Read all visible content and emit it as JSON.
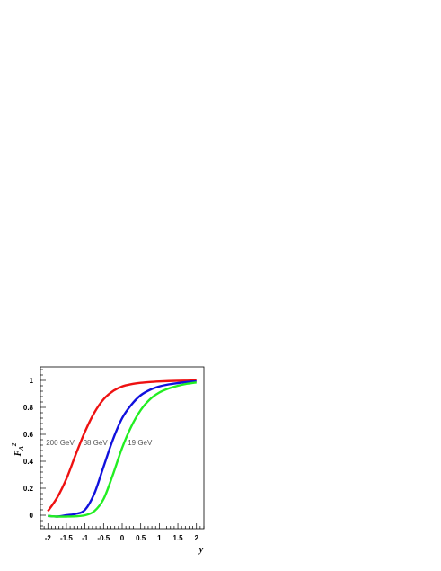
{
  "chart_data": {
    "type": "line",
    "title": "",
    "xlabel": "y",
    "ylabel_main": "F",
    "ylabel_sub": "A",
    "ylabel_sup": "2",
    "xlim": [
      -2.2,
      2.2
    ],
    "ylim": [
      -0.1,
      1.1
    ],
    "grid": false,
    "x_ticks": [
      -2,
      -1.5,
      -1,
      -0.5,
      0,
      0.5,
      1,
      1.5,
      2
    ],
    "x_tick_labels": [
      "-2",
      "-1.5",
      "-1",
      "-0.5",
      "0",
      "0.5",
      "1",
      "1.5",
      "2"
    ],
    "y_ticks": [
      0,
      0.2,
      0.4,
      0.6,
      0.8,
      1
    ],
    "y_tick_labels": [
      "0",
      "0.2",
      "0.4",
      "0.6",
      "0.8",
      "1"
    ],
    "x": [
      -2,
      -1.75,
      -1.5,
      -1.25,
      -1,
      -0.75,
      -0.5,
      -0.25,
      0,
      0.25,
      0.5,
      0.75,
      1,
      1.25,
      1.5,
      1.75,
      2
    ],
    "series": [
      {
        "name": "200 GeV",
        "color": "#ee1111",
        "label_x": -2.05,
        "label_y": 0.52,
        "values": [
          0.03,
          0.13,
          0.27,
          0.45,
          0.62,
          0.76,
          0.86,
          0.92,
          0.955,
          0.972,
          0.982,
          0.988,
          0.992,
          0.995,
          0.997,
          0.998,
          0.999
        ]
      },
      {
        "name": "38 GeV",
        "color": "#1111dd",
        "label_x": -1.05,
        "label_y": 0.52,
        "values": [
          -0.005,
          -0.01,
          0.0,
          0.01,
          0.04,
          0.16,
          0.36,
          0.56,
          0.72,
          0.82,
          0.89,
          0.93,
          0.955,
          0.97,
          0.98,
          0.988,
          0.993
        ]
      },
      {
        "name": "19 GeV",
        "color": "#22ee22",
        "label_x": 0.15,
        "label_y": 0.52,
        "values": [
          -0.005,
          -0.01,
          -0.01,
          -0.008,
          0.0,
          0.03,
          0.12,
          0.3,
          0.5,
          0.66,
          0.78,
          0.86,
          0.91,
          0.94,
          0.96,
          0.975,
          0.985
        ]
      }
    ]
  }
}
